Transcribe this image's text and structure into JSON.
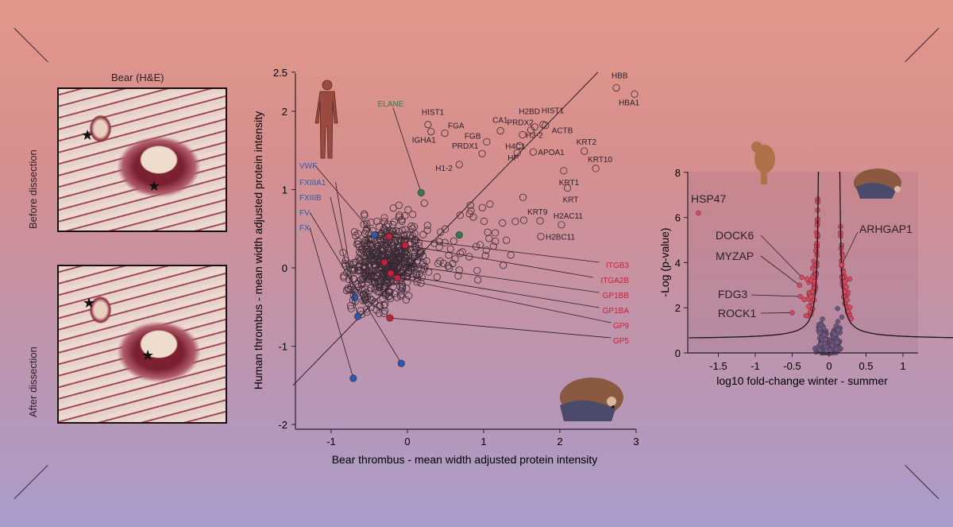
{
  "panel_a": {
    "title": "Bear (H&E)",
    "row_labels": [
      "Before dissection",
      "After dissection"
    ]
  },
  "chart_data": [
    {
      "type": "scatter",
      "xlabel": "Bear thrombus - mean width adjusted protein intensity",
      "ylabel": "Human thrombus - mean width adjusted protein intensity",
      "xlim": [
        -1.5,
        3
      ],
      "ylim": [
        -2,
        2.5
      ],
      "xticks": [
        "-1",
        "0",
        "1",
        "2",
        "3"
      ],
      "yticks": [
        "2.5",
        "2",
        "1",
        "0",
        "-1",
        "-2"
      ],
      "grid": false,
      "colors": {
        "open": "#3a2a34",
        "green": "#2e7d4a",
        "red": "#c8203a",
        "blue": "#2a5ab0"
      },
      "labeled_points": [
        {
          "label": "HBB",
          "x": 2.74,
          "y": 2.3
        },
        {
          "label": "HBA1",
          "x": 2.98,
          "y": 2.22
        },
        {
          "label": "HIST1",
          "x": 0.27,
          "y": 1.83
        },
        {
          "label": "FGA",
          "x": 0.49,
          "y": 1.72
        },
        {
          "label": "IGHA1",
          "x": 0.31,
          "y": 1.74
        },
        {
          "label": "FGB",
          "x": 1.04,
          "y": 1.61
        },
        {
          "label": "PRDX1",
          "x": 0.98,
          "y": 1.46
        },
        {
          "label": "H1-2",
          "x": 0.68,
          "y": 1.32
        },
        {
          "label": "CA1",
          "x": 1.22,
          "y": 1.75
        },
        {
          "label": "H2BD",
          "x": 1.67,
          "y": 1.8
        },
        {
          "label": "PRDX2",
          "x": 1.62,
          "y": 1.76
        },
        {
          "label": "HIST1",
          "x": 1.78,
          "y": 1.83
        },
        {
          "label": "ACTB",
          "x": 1.81,
          "y": 1.82
        },
        {
          "label": "H3-2",
          "x": 1.51,
          "y": 1.7
        },
        {
          "label": "H4C1",
          "x": 1.47,
          "y": 1.56
        },
        {
          "label": "HP",
          "x": 1.44,
          "y": 1.47
        },
        {
          "label": "APOA1",
          "x": 1.65,
          "y": 1.48
        },
        {
          "label": "KRT2",
          "x": 2.32,
          "y": 1.49
        },
        {
          "label": "KRT10",
          "x": 2.47,
          "y": 1.27
        },
        {
          "label": "KRT1",
          "x": 2.05,
          "y": 1.24
        },
        {
          "label": "KRT",
          "x": 2.1,
          "y": 1.02
        },
        {
          "label": "KRT9",
          "x": 1.74,
          "y": 0.6
        },
        {
          "label": "H2AC11",
          "x": 2.02,
          "y": 0.55
        },
        {
          "label": "H2BC11",
          "x": 1.75,
          "y": 0.4
        }
      ],
      "highlighted": [
        {
          "label": "ELANE",
          "group": "green",
          "x": 0.18,
          "y": 0.96
        },
        {
          "label": "",
          "group": "green",
          "x": 0.68,
          "y": 0.42
        },
        {
          "label": "ITGB3",
          "group": "red",
          "x": -0.24,
          "y": 0.4
        },
        {
          "label": "ITGA2B",
          "group": "red",
          "x": -0.03,
          "y": 0.29
        },
        {
          "label": "GP1BB",
          "group": "red",
          "x": -0.3,
          "y": 0.07
        },
        {
          "label": "GP1BA",
          "group": "red",
          "x": -0.22,
          "y": -0.07
        },
        {
          "label": "GP9",
          "group": "red",
          "x": -0.13,
          "y": -0.13
        },
        {
          "label": "GP5",
          "group": "red",
          "x": -0.23,
          "y": -0.64
        },
        {
          "label": "VWF",
          "group": "blue",
          "x": -0.43,
          "y": 0.42
        },
        {
          "label": "FXIIIA1",
          "group": "blue",
          "x": -0.69,
          "y": -0.38
        },
        {
          "label": "FXIIIB",
          "group": "blue",
          "x": -0.65,
          "y": -0.62
        },
        {
          "label": "FV",
          "group": "blue",
          "x": -0.08,
          "y": -1.22
        },
        {
          "label": "FX",
          "group": "blue",
          "x": -0.71,
          "y": -1.41
        }
      ],
      "diagonal": [
        [
          -1.5,
          -1.5
        ],
        [
          2.5,
          2.5
        ]
      ]
    },
    {
      "type": "scatter",
      "subtype": "volcano",
      "xlabel": "log10 fold-change winter - summer",
      "ylabel": "-Log (p-value)",
      "xlim": [
        -1.9,
        1.15
      ],
      "ylim": [
        0,
        8
      ],
      "xticks": [
        "-1.5",
        "-1",
        "-0.5",
        "0",
        "0.5",
        "1"
      ],
      "yticks": [
        "0",
        "2",
        "4",
        "6",
        "8"
      ],
      "colors": {
        "significant": "#d9485a",
        "not_significant": "#6a5a80"
      },
      "labeled_points": [
        {
          "label": "HSP47",
          "x": -1.77,
          "y": 6.2
        },
        {
          "label": "DOCK6",
          "x": -0.37,
          "y": 3.35
        },
        {
          "label": "MYZAP",
          "x": -0.4,
          "y": 3.0
        },
        {
          "label": "FDG3",
          "x": -0.39,
          "y": 2.5
        },
        {
          "label": "ROCK1",
          "x": -0.5,
          "y": 1.78
        },
        {
          "label": "ARHGAP1",
          "x": 0.17,
          "y": 3.9
        }
      ]
    }
  ]
}
